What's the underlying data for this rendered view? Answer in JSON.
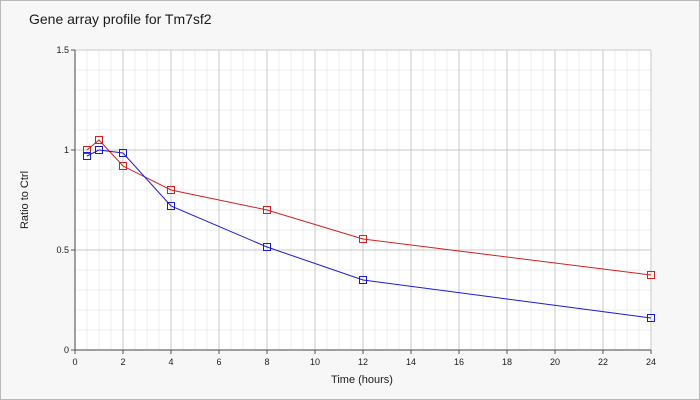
{
  "chart_data": {
    "type": "line",
    "title": "Gene array profile for Tm7sf2",
    "xlabel": "Time (hours)",
    "ylabel": "Ratio to Ctrl",
    "xlim": [
      0,
      24
    ],
    "ylim": [
      0,
      1.5
    ],
    "xticks": [
      "0",
      "2",
      "4",
      "6",
      "8",
      "10",
      "12",
      "14",
      "16",
      "18",
      "20",
      "22",
      "24"
    ],
    "yticks": [
      "0",
      "0.5",
      "1",
      "1.5"
    ],
    "grid": true,
    "series": [
      {
        "color": "#cc2222",
        "x": [
          0.5,
          1,
          2,
          4,
          8,
          12,
          24
        ],
        "y": [
          1.0,
          1.05,
          0.92,
          0.8,
          0.7,
          0.555,
          0.375
        ]
      },
      {
        "color": "#1a1acc",
        "x": [
          0.5,
          1,
          2,
          4,
          8,
          12,
          24
        ],
        "y": [
          0.97,
          1.0,
          0.985,
          0.72,
          0.515,
          0.35,
          0.16
        ]
      }
    ]
  }
}
